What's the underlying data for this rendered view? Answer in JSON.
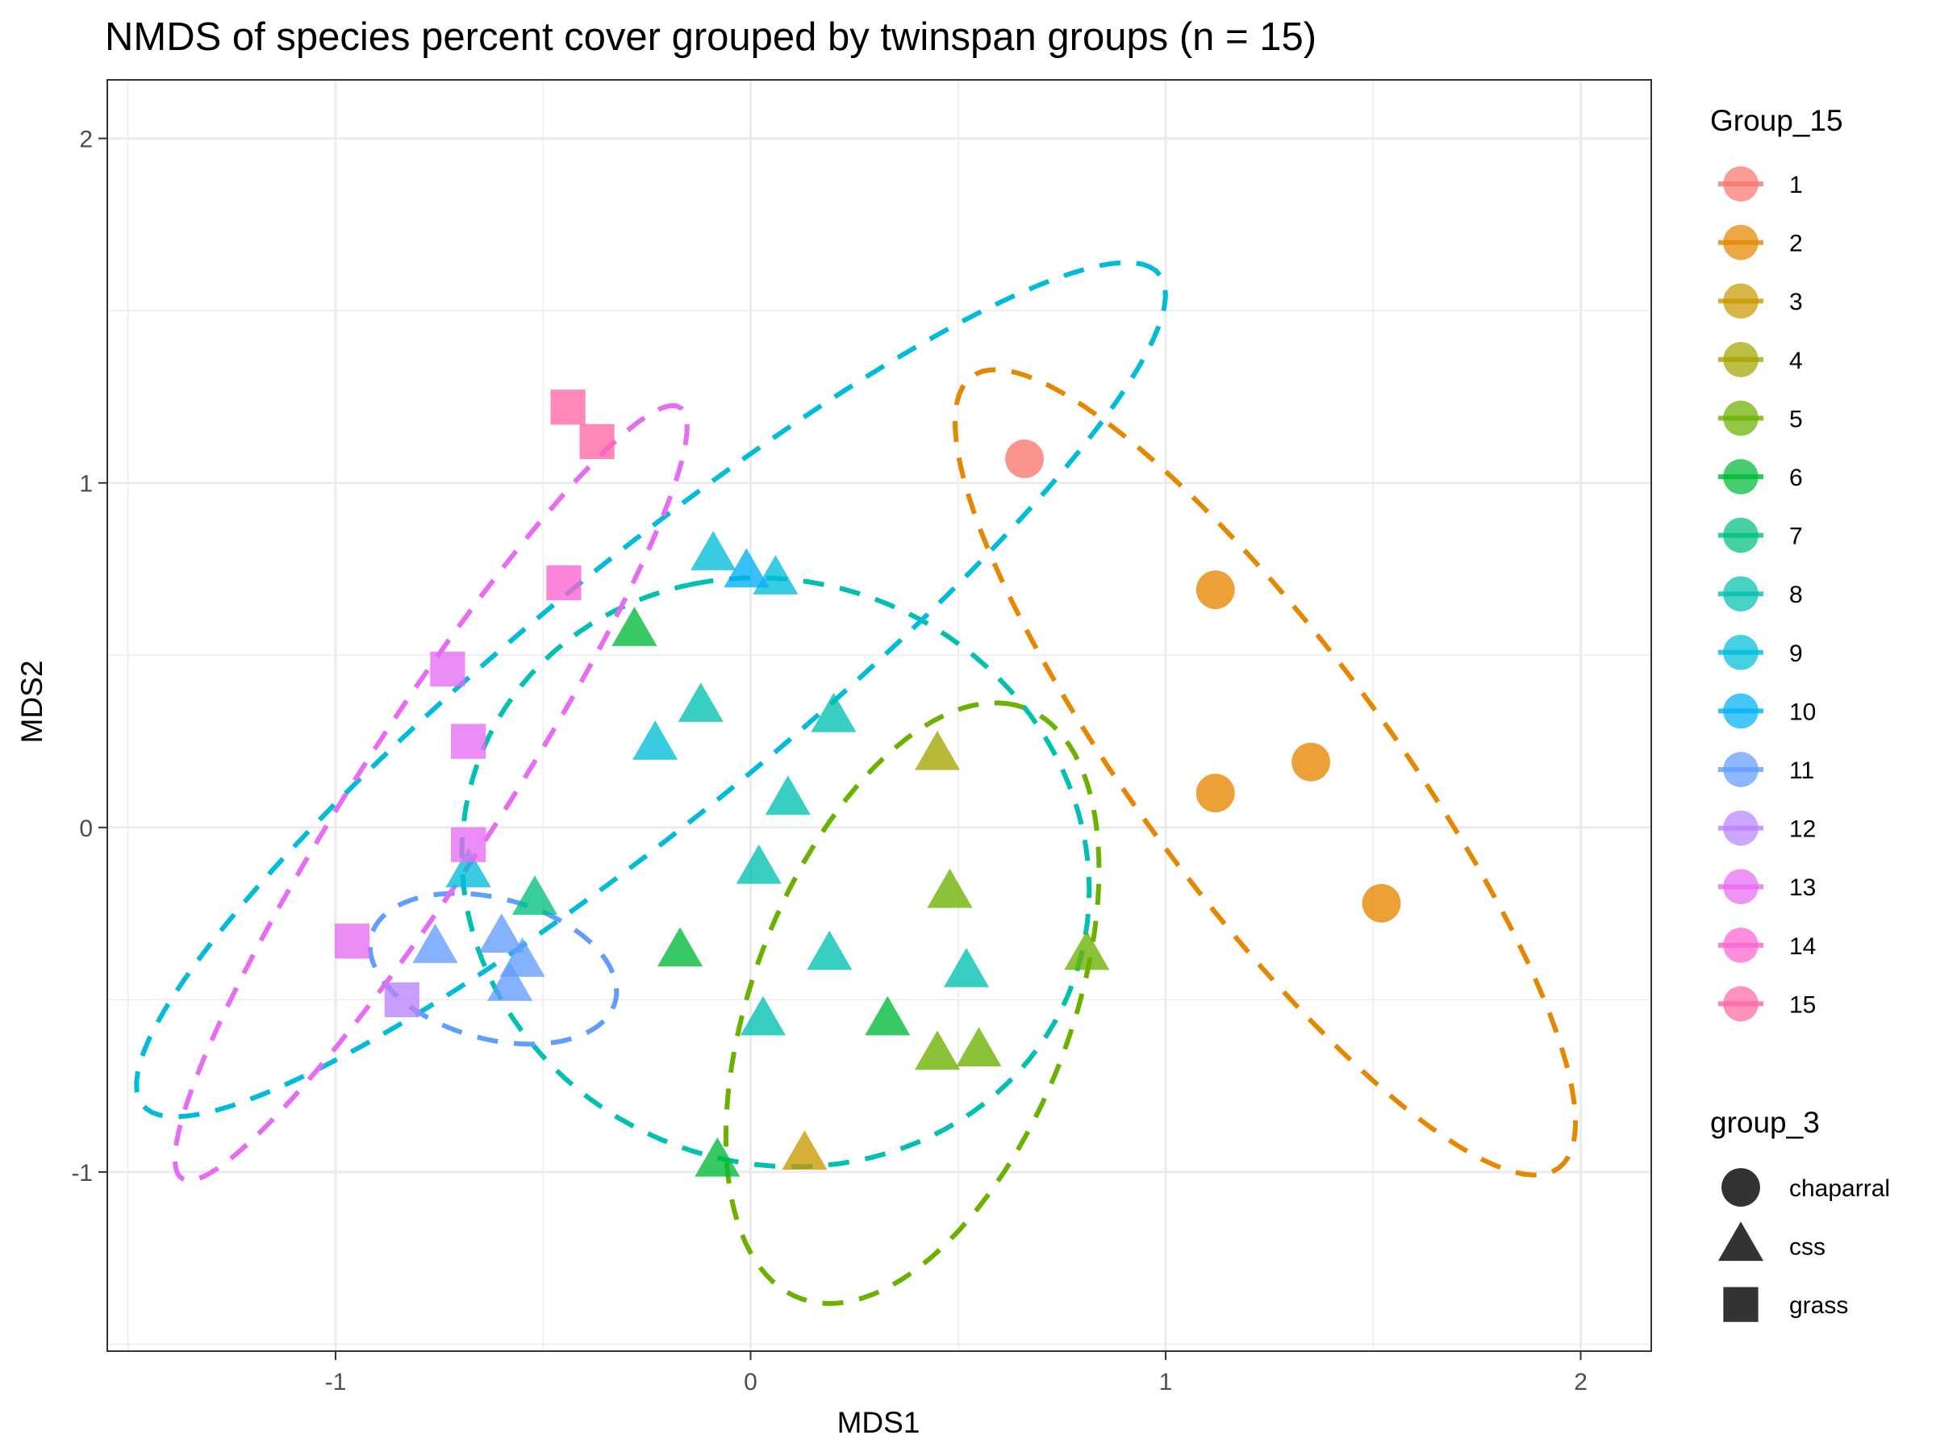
{
  "chart_data": {
    "type": "scatter",
    "title": "NMDS of species percent cover grouped by twinspan groups (n = 15)",
    "xlabel": "MDS1",
    "ylabel": "MDS2",
    "xlim": [
      -1.55,
      2.17
    ],
    "ylim": [
      -1.52,
      2.17
    ],
    "x_ticks": [
      -1,
      0,
      1,
      2
    ],
    "y_ticks": [
      -1,
      0,
      1,
      2
    ],
    "x_tick_labels": [
      "-1",
      "0",
      "1",
      "2"
    ],
    "y_tick_labels": [
      "-1",
      "0",
      "1",
      "2"
    ],
    "grid": true,
    "legend_position": "right",
    "legend_color": {
      "title": "Group_15",
      "entries": [
        {
          "label": "1",
          "color": "#F8766D"
        },
        {
          "label": "2",
          "color": "#E58700"
        },
        {
          "label": "3",
          "color": "#C99800"
        },
        {
          "label": "4",
          "color": "#A3A500"
        },
        {
          "label": "5",
          "color": "#6BB100"
        },
        {
          "label": "6",
          "color": "#00BA38"
        },
        {
          "label": "7",
          "color": "#00BF7D"
        },
        {
          "label": "8",
          "color": "#00C0AF"
        },
        {
          "label": "9",
          "color": "#00BCD8"
        },
        {
          "label": "10",
          "color": "#00B0F6"
        },
        {
          "label": "11",
          "color": "#619CFF"
        },
        {
          "label": "12",
          "color": "#B983FF"
        },
        {
          "label": "13",
          "color": "#E76BF3"
        },
        {
          "label": "14",
          "color": "#FD61D1"
        },
        {
          "label": "15",
          "color": "#FF67A4"
        }
      ]
    },
    "legend_shape": {
      "title": "group_3",
      "entries": [
        {
          "label": "chaparral",
          "shape": "circle"
        },
        {
          "label": "css",
          "shape": "triangle"
        },
        {
          "label": "grass",
          "shape": "square"
        }
      ]
    },
    "points": [
      {
        "x": 0.66,
        "y": 1.07,
        "group": "1",
        "shape": "circle"
      },
      {
        "x": 1.12,
        "y": 0.69,
        "group": "2",
        "shape": "circle"
      },
      {
        "x": 1.35,
        "y": 0.19,
        "group": "2",
        "shape": "circle"
      },
      {
        "x": 1.12,
        "y": 0.1,
        "group": "2",
        "shape": "circle"
      },
      {
        "x": 1.52,
        "y": -0.22,
        "group": "2",
        "shape": "circle"
      },
      {
        "x": 0.13,
        "y": -0.95,
        "group": "3",
        "shape": "triangle"
      },
      {
        "x": 0.45,
        "y": 0.21,
        "group": "4",
        "shape": "triangle"
      },
      {
        "x": 0.48,
        "y": -0.19,
        "group": "5",
        "shape": "triangle"
      },
      {
        "x": 0.45,
        "y": -0.66,
        "group": "5",
        "shape": "triangle"
      },
      {
        "x": 0.55,
        "y": -0.65,
        "group": "5",
        "shape": "triangle"
      },
      {
        "x": 0.81,
        "y": -0.37,
        "group": "5",
        "shape": "triangle"
      },
      {
        "x": -0.28,
        "y": 0.57,
        "group": "6",
        "shape": "triangle"
      },
      {
        "x": -0.17,
        "y": -0.36,
        "group": "6",
        "shape": "triangle"
      },
      {
        "x": 0.33,
        "y": -0.56,
        "group": "6",
        "shape": "triangle"
      },
      {
        "x": -0.08,
        "y": -0.97,
        "group": "6",
        "shape": "triangle"
      },
      {
        "x": -0.52,
        "y": -0.21,
        "group": "7",
        "shape": "triangle"
      },
      {
        "x": -0.12,
        "y": 0.35,
        "group": "8",
        "shape": "triangle"
      },
      {
        "x": 0.2,
        "y": 0.32,
        "group": "8",
        "shape": "triangle"
      },
      {
        "x": 0.09,
        "y": 0.08,
        "group": "8",
        "shape": "triangle"
      },
      {
        "x": 0.02,
        "y": -0.12,
        "group": "8",
        "shape": "triangle"
      },
      {
        "x": 0.19,
        "y": -0.37,
        "group": "8",
        "shape": "triangle"
      },
      {
        "x": 0.52,
        "y": -0.42,
        "group": "8",
        "shape": "triangle"
      },
      {
        "x": 0.03,
        "y": -0.56,
        "group": "8",
        "shape": "triangle"
      },
      {
        "x": -0.23,
        "y": 0.24,
        "group": "9",
        "shape": "triangle"
      },
      {
        "x": -0.09,
        "y": 0.79,
        "group": "9",
        "shape": "triangle"
      },
      {
        "x": 0.06,
        "y": 0.72,
        "group": "9",
        "shape": "triangle"
      },
      {
        "x": -0.68,
        "y": -0.13,
        "group": "9",
        "shape": "triangle"
      },
      {
        "x": -0.01,
        "y": 0.74,
        "group": "10",
        "shape": "triangle"
      },
      {
        "x": -0.76,
        "y": -0.35,
        "group": "11",
        "shape": "triangle"
      },
      {
        "x": -0.6,
        "y": -0.32,
        "group": "11",
        "shape": "triangle"
      },
      {
        "x": -0.55,
        "y": -0.39,
        "group": "11",
        "shape": "triangle"
      },
      {
        "x": -0.58,
        "y": -0.46,
        "group": "11",
        "shape": "triangle"
      },
      {
        "x": -0.84,
        "y": -0.5,
        "group": "12",
        "shape": "square"
      },
      {
        "x": -0.96,
        "y": -0.33,
        "group": "13",
        "shape": "square"
      },
      {
        "x": -0.73,
        "y": 0.46,
        "group": "13",
        "shape": "square"
      },
      {
        "x": -0.68,
        "y": 0.25,
        "group": "13",
        "shape": "square"
      },
      {
        "x": -0.68,
        "y": -0.05,
        "group": "13",
        "shape": "square"
      },
      {
        "x": -0.45,
        "y": 0.71,
        "group": "14",
        "shape": "square"
      },
      {
        "x": -0.44,
        "y": 1.22,
        "group": "15",
        "shape": "square"
      },
      {
        "x": -0.37,
        "y": 1.12,
        "group": "15",
        "shape": "square"
      }
    ],
    "ellipses": [
      {
        "group": "2",
        "cx": 1.24,
        "cy": 0.16,
        "rx": 1.35,
        "ry": 0.32,
        "angle_deg": -59
      },
      {
        "group": "5",
        "cx": 0.39,
        "cy": -0.51,
        "rx": 0.9,
        "ry": 0.39,
        "angle_deg": 74
      },
      {
        "group": "8",
        "cx": 0.06,
        "cy": -0.13,
        "rx": 0.86,
        "ry": 0.75,
        "angle_deg": 103
      },
      {
        "group": "9",
        "cx": -0.24,
        "cy": 0.4,
        "rx": 1.72,
        "ry": 0.34,
        "angle_deg": 45
      },
      {
        "group": "11",
        "cx": -0.62,
        "cy": -0.41,
        "rx": 0.31,
        "ry": 0.2,
        "angle_deg": -22
      },
      {
        "group": "13",
        "cx": -0.77,
        "cy": 0.1,
        "rx": 1.27,
        "ry": 0.18,
        "angle_deg": 62
      }
    ]
  }
}
